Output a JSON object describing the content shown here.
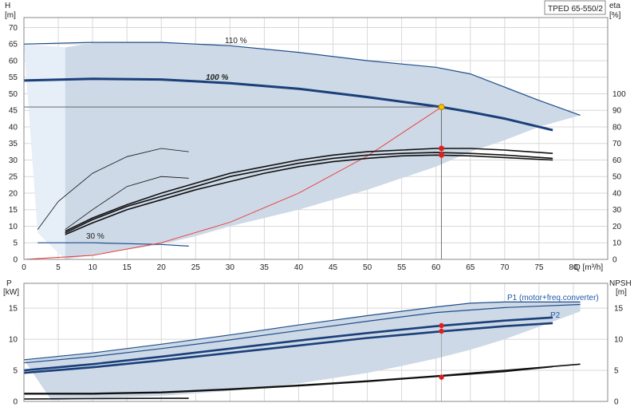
{
  "chart_data": [
    {
      "type": "line",
      "panel": "pump-curves-head-efficiency",
      "title_box": "TPED 65-550/2",
      "ylabel_left": "H",
      "ylabel_left_unit": "[m]",
      "ylabel_right": "eta",
      "ylabel_right_unit": "[%]",
      "xlabel": "Q [m³/h]",
      "xlim": [
        0,
        85
      ],
      "ylim_left": [
        0,
        75
      ],
      "ylim_right": [
        0,
        150
      ],
      "x_ticks": [
        0,
        5,
        10,
        15,
        20,
        25,
        30,
        35,
        40,
        45,
        50,
        55,
        60,
        65,
        70,
        75,
        80
      ],
      "y_left_ticks": [
        0,
        5,
        10,
        15,
        20,
        25,
        30,
        35,
        40,
        45,
        50,
        55,
        60,
        65,
        70
      ],
      "y_right_ticks": [
        0,
        10,
        20,
        30,
        40,
        50,
        60,
        70,
        80,
        90,
        100
      ],
      "curve_labels": {
        "max": "110 %",
        "nominal": "100 %",
        "min": "30 %"
      },
      "series": [
        {
          "role": "head-110",
          "x": [
            0,
            10,
            20,
            30,
            40,
            50,
            60,
            65,
            70,
            75,
            81
          ],
          "y": [
            65,
            65.5,
            65.5,
            64.5,
            62.5,
            60,
            58,
            56,
            52,
            48,
            43.5
          ]
        },
        {
          "role": "head-100",
          "x": [
            0,
            10,
            20,
            30,
            40,
            50,
            60.8,
            65,
            70,
            77
          ],
          "y": [
            54,
            54.5,
            54.3,
            53.2,
            51.5,
            49,
            46,
            44.5,
            42.5,
            39
          ]
        },
        {
          "role": "head-30",
          "x": [
            2,
            10,
            20,
            24
          ],
          "y": [
            5,
            5,
            4.5,
            4
          ]
        },
        {
          "role": "system-curve",
          "x": [
            0,
            10,
            20,
            30,
            40,
            50,
            60.8
          ],
          "y": [
            0,
            1.2,
            5,
            11.2,
            20,
            31.2,
            46
          ]
        },
        {
          "role": "eta-1",
          "x": [
            6,
            10,
            15,
            20,
            25,
            30,
            35,
            40,
            45,
            50,
            55,
            60,
            65,
            70,
            77
          ],
          "y": [
            16,
            24,
            32,
            38,
            44,
            50,
            54,
            58,
            61,
            63,
            64,
            64.5,
            64,
            63,
            61
          ]
        },
        {
          "role": "eta-2",
          "x": [
            6,
            10,
            15,
            20,
            25,
            30,
            35,
            40,
            45,
            50,
            55,
            60,
            65,
            70,
            77
          ],
          "y": [
            15,
            22,
            30,
            36,
            42,
            47,
            52,
            56,
            59,
            61,
            62.5,
            63,
            62.5,
            61.5,
            60
          ]
        },
        {
          "role": "eta-3",
          "x": [
            6,
            10,
            15,
            20,
            25,
            30,
            35,
            40,
            45,
            50,
            55,
            60,
            65,
            70,
            77
          ],
          "y": [
            17,
            25,
            33,
            40,
            46,
            52,
            56,
            60,
            63,
            65,
            66,
            67,
            67,
            66,
            64
          ]
        },
        {
          "role": "eta-thin-1",
          "x": [
            2,
            5,
            10,
            15,
            20,
            24
          ],
          "y": [
            18,
            35,
            52,
            62,
            67,
            65
          ]
        },
        {
          "role": "eta-thin-2",
          "x": [
            6,
            10,
            15,
            20,
            24
          ],
          "y": [
            18,
            30,
            44,
            50,
            49
          ]
        }
      ],
      "shaded_region_head": {
        "x": [
          6,
          10,
          20,
          30,
          40,
          50,
          60,
          65,
          70,
          75,
          81,
          81,
          75,
          70,
          65,
          60,
          55,
          50,
          45,
          40,
          35,
          30,
          25,
          20,
          12,
          6
        ],
        "y": [
          64,
          65.3,
          65.5,
          64.5,
          62.5,
          60,
          58,
          56,
          52,
          48,
          43.5,
          43.5,
          40,
          36,
          32.5,
          28,
          24.5,
          21,
          18,
          15,
          12.5,
          10,
          7,
          4.5,
          2,
          0
        ]
      },
      "shaded_region_light": {
        "x": [
          0,
          6,
          6,
          2
        ],
        "y": [
          65,
          64,
          0,
          8
        ]
      },
      "points": [
        {
          "x": 60.8,
          "y": 46,
          "color": "#f2c500",
          "role": "duty-point"
        },
        {
          "x": 60.8,
          "y": 33.5,
          "color": "#e02020",
          "role": "eta-point-1"
        },
        {
          "x": 60.8,
          "y": 31.5,
          "color": "#e02020",
          "role": "eta-point-2"
        }
      ],
      "duty_q": 60.8,
      "duty_h": 46
    },
    {
      "type": "line",
      "panel": "power-npsh",
      "ylabel_left": "P",
      "ylabel_left_unit": "[kW]",
      "ylabel_right": "NPSH",
      "ylabel_right_unit": "[m]",
      "xlim": [
        0,
        85
      ],
      "ylim_left": [
        0,
        19
      ],
      "y_left_ticks": [
        0,
        5,
        10,
        15
      ],
      "y_right_ticks": [
        0,
        5,
        10,
        15
      ],
      "series_labels": {
        "p1": "P1 (motor+freq.converter)",
        "p2": "P2"
      },
      "series": [
        {
          "role": "p1-max",
          "x": [
            0,
            10,
            20,
            30,
            40,
            50,
            60,
            65,
            70,
            81
          ],
          "y": [
            6.7,
            7.8,
            9.2,
            10.7,
            12.3,
            13.8,
            15.2,
            15.8,
            16.0,
            16.0
          ]
        },
        {
          "role": "p2-max",
          "x": [
            0,
            10,
            20,
            30,
            40,
            50,
            60,
            70,
            81
          ],
          "y": [
            6.2,
            7.2,
            8.5,
            9.9,
            11.4,
            12.9,
            14.3,
            15.1,
            15.6
          ]
        },
        {
          "role": "p1-nominal",
          "x": [
            0,
            10,
            20,
            30,
            40,
            50,
            60,
            70,
            77
          ],
          "y": [
            5.0,
            6.0,
            7.2,
            8.5,
            9.8,
            11.0,
            12.1,
            13.0,
            13.5
          ]
        },
        {
          "role": "p2-nominal",
          "x": [
            0,
            10,
            20,
            30,
            40,
            50,
            60,
            70,
            77
          ],
          "y": [
            4.6,
            5.5,
            6.6,
            7.8,
            9.0,
            10.2,
            11.2,
            12.1,
            12.6
          ]
        },
        {
          "role": "npsh",
          "x": [
            0,
            10,
            20,
            30,
            40,
            50,
            60,
            70,
            81
          ],
          "y": [
            1.3,
            1.3,
            1.5,
            2.0,
            2.6,
            3.3,
            4.1,
            5.0,
            6.0
          ]
        },
        {
          "role": "npsh-2",
          "x": [
            0,
            10,
            20,
            30,
            40,
            50,
            60,
            70,
            77
          ],
          "y": [
            1.2,
            1.2,
            1.4,
            1.9,
            2.5,
            3.2,
            4.0,
            4.8,
            5.6
          ]
        },
        {
          "role": "low-speed-power",
          "x": [
            0,
            10,
            20,
            24
          ],
          "y": [
            0.4,
            0.45,
            0.5,
            0.5
          ]
        }
      ],
      "shaded_region": {
        "x": [
          0,
          10,
          20,
          30,
          40,
          50,
          60,
          65,
          70,
          81,
          81,
          75,
          70,
          65,
          60,
          55,
          50,
          40,
          30,
          20,
          10,
          6,
          4
        ],
        "y": [
          6.7,
          7.8,
          9.2,
          10.7,
          12.3,
          13.8,
          15.2,
          15.8,
          16.0,
          16.0,
          14.5,
          12,
          10,
          8.3,
          6.9,
          5.7,
          4.6,
          2.9,
          1.7,
          0.9,
          0.5,
          0.3,
          0.2
        ]
      },
      "points": [
        {
          "x": 60.8,
          "y": 12.2,
          "color": "#e02020",
          "role": "p1-point"
        },
        {
          "x": 60.8,
          "y": 11.3,
          "color": "#e02020",
          "role": "p2-point"
        },
        {
          "x": 60.8,
          "y": 3.9,
          "color": "#e02020",
          "role": "npsh-point"
        }
      ]
    }
  ]
}
